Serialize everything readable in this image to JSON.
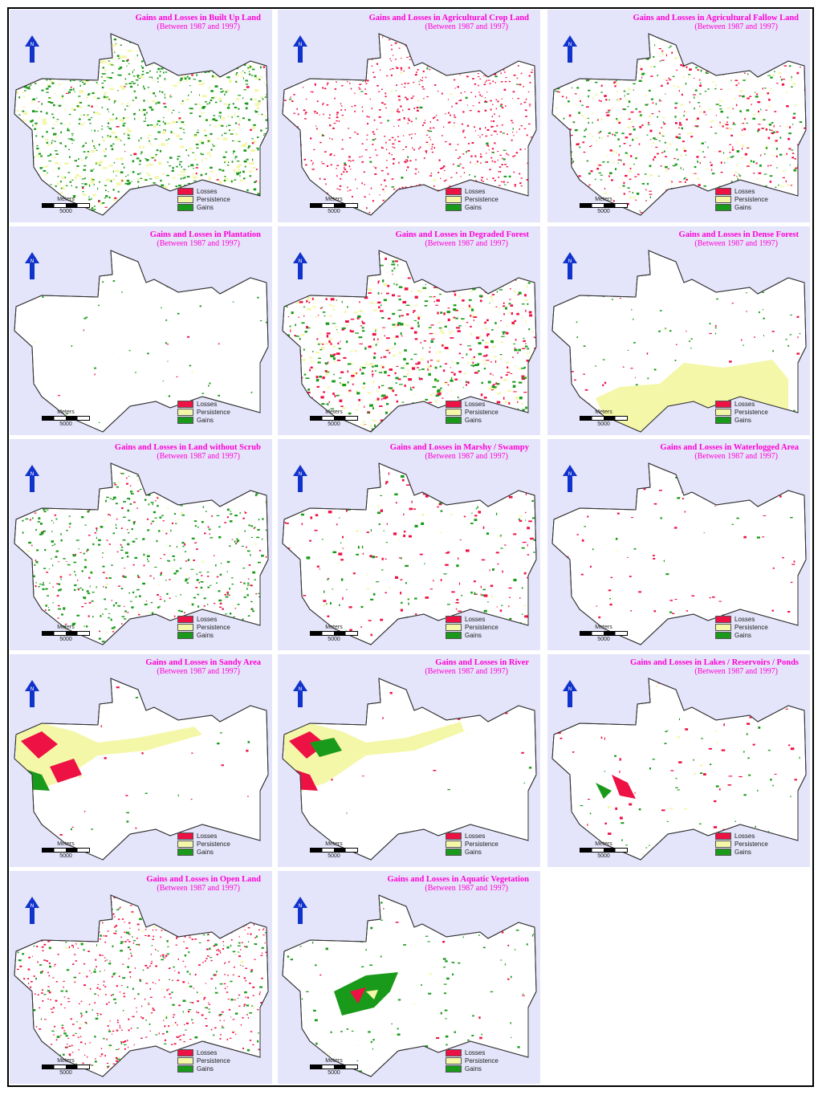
{
  "colors": {
    "panel_bg": "#e4e4fa",
    "title": "#ff00d4",
    "losses": "#ee1144",
    "persistence": "#f4f7a8",
    "gains": "#1a9a1a",
    "arrow": "#1133cc"
  },
  "legend": {
    "losses": "Losses",
    "persistence": "Persistence",
    "gains": "Gains"
  },
  "scale": {
    "unit": "Meters",
    "value": "5000"
  },
  "north_arrow_icon": "north-arrow-icon",
  "panels": [
    {
      "title": "Gains and Losses in Built Up Land",
      "subtitle": "(Between 1987 and 1997)"
    },
    {
      "title": "Gains and Losses in Agricultural  Crop Land",
      "subtitle": "(Between 1987 and 1997)"
    },
    {
      "title": "Gains and Losses in Agricultural  Fallow Land",
      "subtitle": "(Between 1987 and 1997)"
    },
    {
      "title": "Gains and Losses in Plantation",
      "subtitle": "(Between 1987 and 1997)"
    },
    {
      "title": "Gains and Losses in Degraded Forest",
      "subtitle": "(Between 1987 and 1997)"
    },
    {
      "title": "Gains and Losses in Dense Forest",
      "subtitle": "(Between 1987 and 1997)"
    },
    {
      "title": "Gains and Losses in Land without Scrub",
      "subtitle": "(Between 1987 and 1997)"
    },
    {
      "title": "Gains and Losses in Marshy / Swampy",
      "subtitle": "(Between 1987 and 1997)"
    },
    {
      "title": "Gains and Losses in Waterlogged Area",
      "subtitle": "(Between 1987 and 1997)"
    },
    {
      "title": "Gains and Losses in Sandy Area",
      "subtitle": "(Between 1987 and 1997)"
    },
    {
      "title": "Gains and Losses in River",
      "subtitle": "(Between 1987 and 1997)"
    },
    {
      "title": "Gains and Losses in Lakes / Reservoirs / Ponds",
      "subtitle": "(Between 1987 and 1997)"
    },
    {
      "title": "Gains and Losses in Open Land",
      "subtitle": "(Between 1987 and 1997)"
    },
    {
      "title": "Gains and Losses in Aquatic Vegetation",
      "subtitle": "(Between 1987 and 1997)"
    }
  ]
}
